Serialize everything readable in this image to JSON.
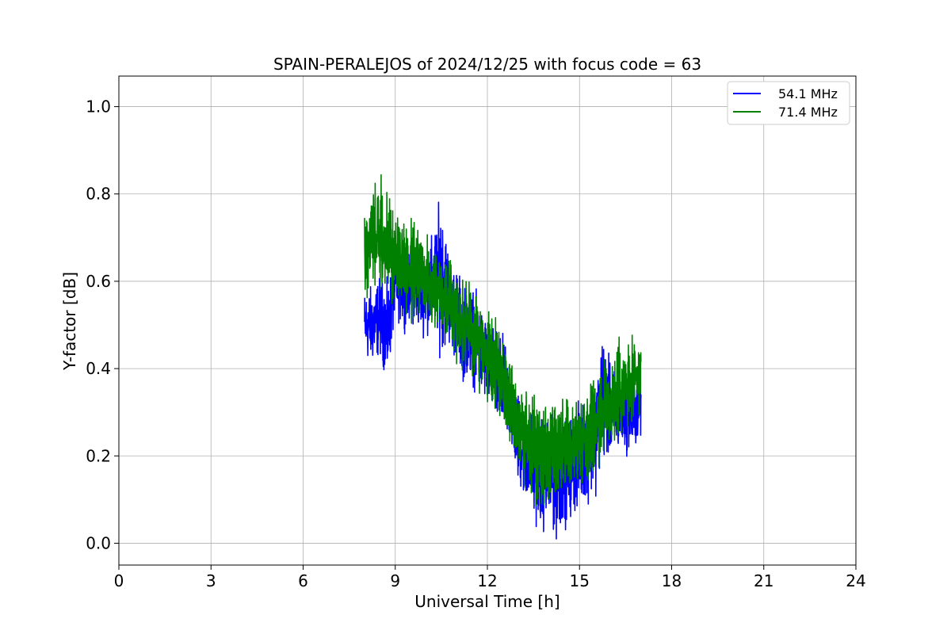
{
  "chart_data": {
    "type": "line",
    "title": "SPAIN-PERALEJOS of 2024/12/25 with focus code = 63",
    "xlabel": "Universal Time [h]",
    "ylabel": "Y-factor [dB]",
    "xlim": [
      0,
      24
    ],
    "ylim": [
      -0.05,
      1.07
    ],
    "xticks": [
      0,
      3,
      6,
      9,
      12,
      15,
      18,
      21,
      24
    ],
    "xtick_labels": [
      "0",
      "3",
      "6",
      "9",
      "12",
      "15",
      "18",
      "21",
      "24"
    ],
    "yticks": [
      0.0,
      0.2,
      0.4,
      0.6,
      0.8,
      1.0
    ],
    "ytick_labels": [
      "0.0",
      "0.2",
      "0.4",
      "0.6",
      "0.8",
      "1.0"
    ],
    "grid": true,
    "legend_position": "top-right",
    "series": [
      {
        "name": "54.1 MHz",
        "color": "#0000ff",
        "x": [
          8.0,
          8.25,
          8.5,
          8.75,
          9.0,
          9.25,
          9.5,
          9.75,
          10.0,
          10.25,
          10.5,
          10.75,
          11.0,
          11.25,
          11.5,
          11.75,
          12.0,
          12.25,
          12.5,
          12.75,
          13.0,
          13.25,
          13.5,
          13.75,
          14.0,
          14.25,
          14.5,
          14.75,
          15.0,
          15.25,
          15.5,
          15.75,
          16.0,
          16.25,
          16.5,
          16.75,
          17.0
        ],
        "center": [
          0.5,
          0.5,
          0.52,
          0.48,
          0.6,
          0.58,
          0.6,
          0.58,
          0.58,
          0.6,
          0.62,
          0.56,
          0.52,
          0.48,
          0.48,
          0.44,
          0.42,
          0.38,
          0.36,
          0.32,
          0.24,
          0.2,
          0.18,
          0.16,
          0.16,
          0.14,
          0.16,
          0.18,
          0.2,
          0.22,
          0.24,
          0.34,
          0.3,
          0.3,
          0.3,
          0.3,
          0.32
        ],
        "spread": [
          0.09,
          0.1,
          0.1,
          0.12,
          0.09,
          0.09,
          0.1,
          0.1,
          0.11,
          0.12,
          0.2,
          0.12,
          0.12,
          0.12,
          0.12,
          0.12,
          0.11,
          0.12,
          0.12,
          0.11,
          0.12,
          0.12,
          0.13,
          0.14,
          0.14,
          0.14,
          0.13,
          0.13,
          0.13,
          0.13,
          0.14,
          0.16,
          0.12,
          0.1,
          0.1,
          0.1,
          0.09
        ]
      },
      {
        "name": "71.4 MHz",
        "color": "#008000",
        "x": [
          8.0,
          8.25,
          8.5,
          8.75,
          9.0,
          9.25,
          9.5,
          9.75,
          10.0,
          10.25,
          10.5,
          10.75,
          11.0,
          11.25,
          11.5,
          11.75,
          12.0,
          12.25,
          12.5,
          12.75,
          13.0,
          13.25,
          13.5,
          13.75,
          14.0,
          14.25,
          14.5,
          14.75,
          15.0,
          15.25,
          15.5,
          15.75,
          16.0,
          16.25,
          16.5,
          16.75,
          17.0
        ],
        "center": [
          0.66,
          0.7,
          0.7,
          0.68,
          0.66,
          0.64,
          0.62,
          0.62,
          0.6,
          0.6,
          0.58,
          0.56,
          0.52,
          0.5,
          0.48,
          0.46,
          0.42,
          0.4,
          0.38,
          0.34,
          0.28,
          0.24,
          0.22,
          0.2,
          0.2,
          0.2,
          0.22,
          0.22,
          0.24,
          0.26,
          0.28,
          0.3,
          0.32,
          0.34,
          0.36,
          0.36,
          0.38
        ],
        "spread": [
          0.12,
          0.14,
          0.13,
          0.12,
          0.12,
          0.11,
          0.11,
          0.11,
          0.11,
          0.11,
          0.11,
          0.11,
          0.11,
          0.11,
          0.11,
          0.11,
          0.11,
          0.11,
          0.11,
          0.11,
          0.12,
          0.13,
          0.13,
          0.13,
          0.14,
          0.13,
          0.12,
          0.12,
          0.12,
          0.12,
          0.12,
          0.12,
          0.12,
          0.12,
          0.11,
          0.11,
          0.1
        ]
      }
    ]
  }
}
